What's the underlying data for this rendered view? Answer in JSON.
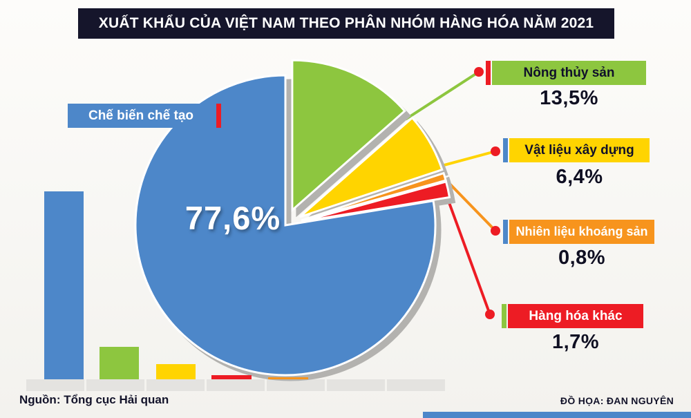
{
  "title": "XUẤT KHẨU CỦA VIỆT NAM THEO PHÂN NHÓM HÀNG HÓA NĂM 2021",
  "footer": {
    "source": "Nguồn: Tổng cục Hải quan",
    "credit": "ĐỒ HỌA: ĐAN NGUYÊN"
  },
  "colors": {
    "title_bar": "#15152b",
    "accent_red": "#ed1c24",
    "accent_blue": "#4d87c9",
    "accent_green": "#8dc63f",
    "leader_dot": "#ed1c24",
    "footer_bar": "#4d87c9"
  },
  "chart_data": {
    "type": "pie",
    "title": "XUẤT KHẨU CỦA VIỆT NAM THEO PHÂN NHÓM HÀNG HÓA NĂM 2021",
    "unit": "%",
    "legend_position": "right",
    "slices": [
      {
        "label": "Chế biến chế tạo",
        "value": 77.6,
        "display": "77,6%",
        "color": "#4d87c9",
        "accent": "#ed1c24",
        "text": "#ffffff"
      },
      {
        "label": "Nông thủy sản",
        "value": 13.5,
        "display": "13,5%",
        "color": "#8dc63f",
        "accent": "#ed1c24",
        "text": "#10102a"
      },
      {
        "label": "Vật liệu xây dựng",
        "value": 6.4,
        "display": "6,4%",
        "color": "#ffd400",
        "accent": "#4d87c9",
        "text": "#10102a"
      },
      {
        "label": "Nhiên liệu khoáng sản",
        "value": 0.8,
        "display": "0,8%",
        "color": "#f7941d",
        "accent": "#4d87c9",
        "text": "#ffffff"
      },
      {
        "label": "Hàng hóa khác",
        "value": 1.7,
        "display": "1,7%",
        "color": "#ed1c24",
        "accent": "#8dc63f",
        "text": "#ffffff"
      }
    ],
    "secondary": {
      "type": "bar",
      "categories": [
        "Chế biến chế tạo",
        "Nông thủy sản",
        "Vật liệu xây dựng",
        "Hàng hóa khác",
        "Nhiên liệu khoáng sản"
      ],
      "values": [
        77.6,
        13.5,
        6.4,
        1.7,
        0.8
      ]
    }
  }
}
